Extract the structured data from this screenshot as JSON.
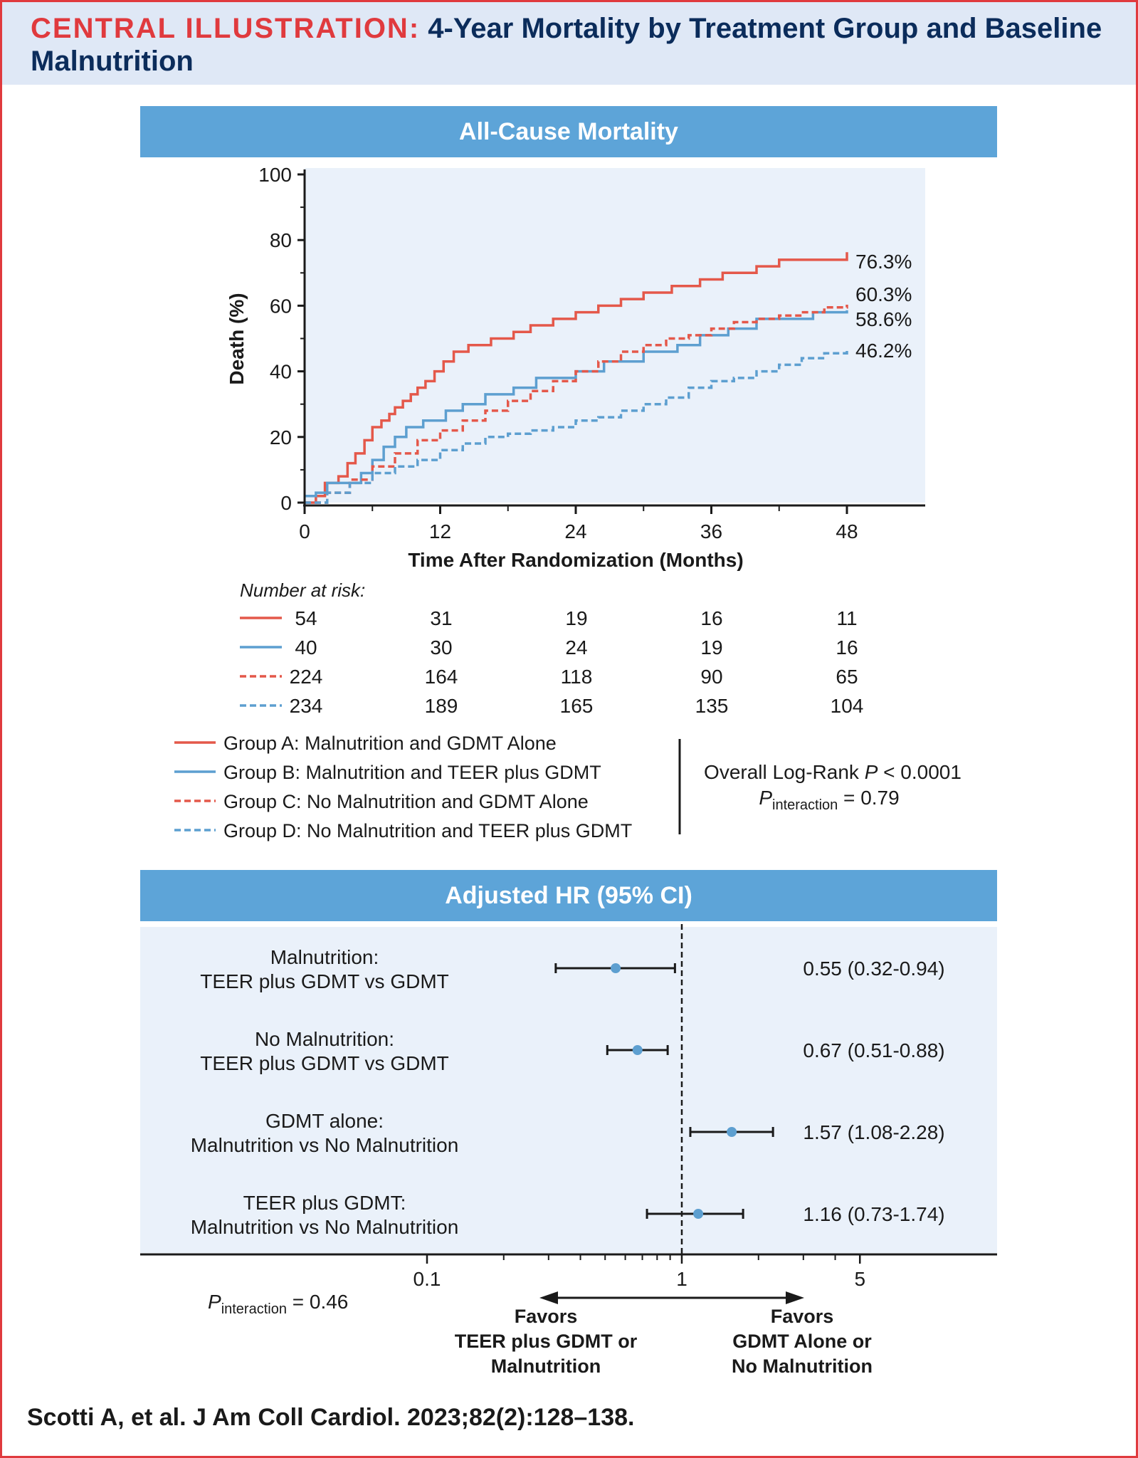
{
  "header": {
    "label": "CENTRAL ILLUSTRATION:",
    "title": "4-Year Mortality by Treatment Group and Baseline Malnutrition"
  },
  "colors": {
    "red": "#e4584a",
    "blue": "#5d9fd0",
    "band": "#5da4d8",
    "panel": "#eaf1fa",
    "title_navy": "#0b2c5b",
    "title_red": "#e03a3e"
  },
  "chart_data": [
    {
      "type": "line",
      "title": "All-Cause Mortality",
      "xlabel": "Time After Randomization (Months)",
      "ylabel": "Death (%)",
      "xlim": [
        0,
        48
      ],
      "ylim": [
        0,
        100
      ],
      "x_ticks": [
        0,
        12,
        24,
        36,
        48
      ],
      "y_ticks": [
        0,
        20,
        40,
        60,
        80,
        100
      ],
      "series": [
        {
          "name": "Group A: Malnutrition and GDMT Alone",
          "color": "#e4584a",
          "dash": "solid",
          "end_label": "76.3%",
          "points": [
            [
              0,
              0
            ],
            [
              1,
              2
            ],
            [
              1.8,
              6
            ],
            [
              3,
              8
            ],
            [
              3.8,
              12
            ],
            [
              4.5,
              15
            ],
            [
              5.3,
              19
            ],
            [
              6,
              23
            ],
            [
              6.8,
              25
            ],
            [
              7.5,
              27
            ],
            [
              8,
              29
            ],
            [
              8.7,
              31
            ],
            [
              9.4,
              33
            ],
            [
              10,
              35
            ],
            [
              10.7,
              37
            ],
            [
              11.5,
              40
            ],
            [
              12.3,
              43
            ],
            [
              13.2,
              46
            ],
            [
              14.5,
              48
            ],
            [
              16.5,
              50
            ],
            [
              18.5,
              52
            ],
            [
              20,
              54
            ],
            [
              22,
              56
            ],
            [
              24,
              58
            ],
            [
              26,
              60
            ],
            [
              28,
              62
            ],
            [
              30,
              64
            ],
            [
              32.5,
              66
            ],
            [
              35,
              68
            ],
            [
              37,
              70
            ],
            [
              40,
              72
            ],
            [
              42,
              74
            ],
            [
              48,
              76.3
            ]
          ]
        },
        {
          "name": "Group B: Malnutrition and TEER plus GDMT",
          "color": "#5d9fd0",
          "dash": "solid",
          "end_label": "58.6%",
          "points": [
            [
              0,
              2
            ],
            [
              1,
              3
            ],
            [
              2,
              6
            ],
            [
              3.5,
              6
            ],
            [
              5,
              9
            ],
            [
              6,
              13
            ],
            [
              7,
              17
            ],
            [
              8,
              20
            ],
            [
              9,
              23
            ],
            [
              10.5,
              25
            ],
            [
              12.5,
              28
            ],
            [
              14,
              30
            ],
            [
              16,
              33
            ],
            [
              18.5,
              35
            ],
            [
              20.5,
              38
            ],
            [
              24,
              40
            ],
            [
              26.5,
              43
            ],
            [
              30,
              46
            ],
            [
              33,
              48
            ],
            [
              35,
              51
            ],
            [
              37.5,
              53
            ],
            [
              40,
              56
            ],
            [
              45,
              58
            ],
            [
              48,
              58.6
            ]
          ]
        },
        {
          "name": "Group C: No Malnutrition and GDMT Alone",
          "color": "#e4584a",
          "dash": "dashed",
          "end_label": "60.3%",
          "points": [
            [
              0,
              0
            ],
            [
              2,
              3
            ],
            [
              4,
              7
            ],
            [
              6,
              11
            ],
            [
              8,
              15
            ],
            [
              10,
              19
            ],
            [
              12,
              22
            ],
            [
              14,
              25
            ],
            [
              16,
              28
            ],
            [
              18,
              31
            ],
            [
              20,
              34
            ],
            [
              22,
              37
            ],
            [
              24,
              40
            ],
            [
              26,
              43
            ],
            [
              28,
              46
            ],
            [
              30,
              48
            ],
            [
              32,
              50
            ],
            [
              34,
              51
            ],
            [
              36,
              53
            ],
            [
              38,
              55
            ],
            [
              40,
              56
            ],
            [
              42,
              57
            ],
            [
              44,
              58
            ],
            [
              46,
              59.5
            ],
            [
              48,
              60.3
            ]
          ]
        },
        {
          "name": "Group D: No Malnutrition and TEER plus GDMT",
          "color": "#5d9fd0",
          "dash": "dashed",
          "end_label": "46.2%",
          "points": [
            [
              0,
              0
            ],
            [
              2,
              3
            ],
            [
              4,
              6
            ],
            [
              6,
              9
            ],
            [
              8,
              11
            ],
            [
              10,
              13
            ],
            [
              12,
              16
            ],
            [
              14,
              18
            ],
            [
              16,
              20
            ],
            [
              18,
              21
            ],
            [
              20,
              22
            ],
            [
              22,
              23
            ],
            [
              24,
              25
            ],
            [
              26,
              26
            ],
            [
              28,
              28
            ],
            [
              30,
              30
            ],
            [
              32,
              32
            ],
            [
              34,
              35
            ],
            [
              36,
              37
            ],
            [
              38,
              38
            ],
            [
              40,
              40
            ],
            [
              42,
              42
            ],
            [
              44,
              44
            ],
            [
              46,
              45.5
            ],
            [
              48,
              46.2
            ]
          ]
        }
      ],
      "number_at_risk": {
        "title": "Number at risk:",
        "rows": [
          {
            "color": "#e4584a",
            "dash": "solid",
            "values": [
              "54",
              "31",
              "19",
              "16",
              "11"
            ]
          },
          {
            "color": "#5d9fd0",
            "dash": "solid",
            "values": [
              "40",
              "30",
              "24",
              "19",
              "16"
            ]
          },
          {
            "color": "#e4584a",
            "dash": "dashed",
            "values": [
              "224",
              "164",
              "118",
              "90",
              "65"
            ]
          },
          {
            "color": "#5d9fd0",
            "dash": "dashed",
            "values": [
              "234",
              "189",
              "165",
              "135",
              "104"
            ]
          }
        ]
      },
      "stats": {
        "line1_prefix": "Overall Log-Rank ",
        "line1_p": "P",
        "line1_suffix": " < 0.0001",
        "line2_p": "P",
        "line2_sub": "interaction",
        "line2_suffix": " = 0.79"
      }
    },
    {
      "type": "forest",
      "title": "Adjusted HR (95% CI)",
      "x_scale": "log",
      "xlim": [
        0.05,
        10
      ],
      "x_ticks": [
        {
          "value": 0.1,
          "label": "0.1"
        },
        {
          "value": 1,
          "label": "1"
        },
        {
          "value": 5,
          "label": "5"
        }
      ],
      "reference": 1,
      "rows": [
        {
          "label1": "Malnutrition:",
          "label2": "TEER plus GDMT vs GDMT",
          "hr": 0.55,
          "lo": 0.32,
          "hi": 0.94,
          "text": "0.55 (0.32-0.94)"
        },
        {
          "label1": "No Malnutrition:",
          "label2": "TEER plus GDMT vs GDMT",
          "hr": 0.67,
          "lo": 0.51,
          "hi": 0.88,
          "text": "0.67 (0.51-0.88)"
        },
        {
          "label1": "GDMT alone:",
          "label2": "Malnutrition vs No Malnutrition",
          "hr": 1.57,
          "lo": 1.08,
          "hi": 2.28,
          "text": "1.57 (1.08-2.28)"
        },
        {
          "label1": "TEER plus GDMT:",
          "label2": "Malnutrition vs No Malnutrition",
          "hr": 1.16,
          "lo": 0.73,
          "hi": 1.74,
          "text": "1.16 (0.73-1.74)"
        }
      ],
      "p_interaction": {
        "p": "P",
        "sub": "interaction",
        "suffix": " = 0.46"
      },
      "favors_left": [
        "Favors",
        "TEER plus GDMT or",
        "Malnutrition"
      ],
      "favors_right": [
        "Favors",
        "GDMT Alone or",
        "No Malnutrition"
      ]
    }
  ],
  "citation": "Scotti A, et al. J Am Coll Cardiol. 2023;82(2):128–138."
}
